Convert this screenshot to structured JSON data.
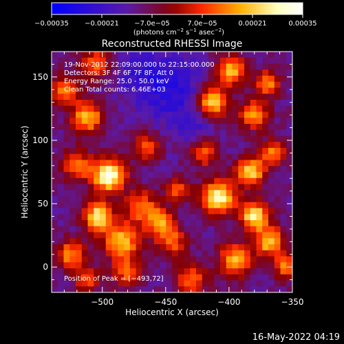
{
  "chart_data": {
    "type": "heatmap",
    "title": "Reconstructed RHESSI Image",
    "xlabel": "Heliocentric X (arcsec)",
    "ylabel": "Heliocentric Y (arcsec)",
    "xlim": [
      -540,
      -350
    ],
    "ylim": [
      -20,
      170
    ],
    "xticks": [
      -500,
      -450,
      -400,
      -350
    ],
    "yticks": [
      0,
      50,
      100,
      150
    ],
    "xtick_labels": [
      "−500",
      "−450",
      "−400",
      "−350"
    ],
    "ytick_labels": [
      "0",
      "50",
      "100",
      "150"
    ],
    "colorbar": {
      "range": [
        -0.00035,
        0.00035
      ],
      "tick_labels": [
        "−0.00035",
        "−0.00021",
        "−7.0e−05",
        "7.0e−05",
        "0.00021",
        "0.00035"
      ],
      "unit_parts": [
        "(photons cm",
        "−2",
        " s",
        "−1",
        " asec",
        "−2",
        ")"
      ],
      "stops": [
        "#0000ff",
        "#5a1aa8",
        "#880000",
        "#ff2a00",
        "#ffb000",
        "#ffffc0",
        "#ffffff"
      ]
    },
    "annotations": {
      "time_range": "19-Nov-2012 22:09:00.000 to 22:15:00.000",
      "detectors": "Detectors: 3F 4F 6F 7F 8F, Att 0",
      "energy_range": "Energy Range: 25.0 - 50.0 keV",
      "clean_info": "Clean     Total counts: 6.46E+03",
      "peak": "Position of Peak = [−493,72]"
    },
    "sources": [
      {
        "x": -495,
        "y": 72,
        "peak": 1.0,
        "size": 9
      },
      {
        "x": -503,
        "y": 40,
        "peak": 0.85,
        "size": 8
      },
      {
        "x": -512,
        "y": 118,
        "peak": 0.7,
        "size": 9
      },
      {
        "x": -485,
        "y": 20,
        "peak": 0.75,
        "size": 10
      },
      {
        "x": -520,
        "y": 80,
        "peak": 0.6,
        "size": 8
      },
      {
        "x": -530,
        "y": 140,
        "peak": 0.55,
        "size": 8
      },
      {
        "x": -525,
        "y": 10,
        "peak": 0.6,
        "size": 8
      },
      {
        "x": -470,
        "y": 48,
        "peak": 0.55,
        "size": 9
      },
      {
        "x": -455,
        "y": 35,
        "peak": 0.6,
        "size": 8
      },
      {
        "x": -445,
        "y": 20,
        "peak": 0.5,
        "size": 8
      },
      {
        "x": -440,
        "y": 60,
        "peak": 0.45,
        "size": 7
      },
      {
        "x": -465,
        "y": 95,
        "peak": 0.45,
        "size": 8
      },
      {
        "x": -420,
        "y": 90,
        "peak": 0.5,
        "size": 8
      },
      {
        "x": -408,
        "y": 55,
        "peak": 0.95,
        "size": 9
      },
      {
        "x": -413,
        "y": 130,
        "peak": 0.8,
        "size": 9
      },
      {
        "x": -398,
        "y": 155,
        "peak": 0.7,
        "size": 8
      },
      {
        "x": -380,
        "y": 120,
        "peak": 0.65,
        "size": 8
      },
      {
        "x": -370,
        "y": 145,
        "peak": 0.6,
        "size": 7
      },
      {
        "x": -383,
        "y": 75,
        "peak": 0.8,
        "size": 8
      },
      {
        "x": -365,
        "y": 90,
        "peak": 0.6,
        "size": 7
      },
      {
        "x": -380,
        "y": 40,
        "peak": 0.85,
        "size": 8
      },
      {
        "x": -368,
        "y": 20,
        "peak": 0.75,
        "size": 8
      },
      {
        "x": -395,
        "y": 5,
        "peak": 0.7,
        "size": 9
      },
      {
        "x": -355,
        "y": 0,
        "peak": 0.55,
        "size": 7
      },
      {
        "x": -430,
        "y": -10,
        "peak": 0.5,
        "size": 9
      },
      {
        "x": -480,
        "y": -5,
        "peak": 0.5,
        "size": 8
      },
      {
        "x": -512,
        "y": -10,
        "peak": 0.45,
        "size": 7
      },
      {
        "x": -505,
        "y": 160,
        "peak": 0.55,
        "size": 8
      }
    ],
    "negative_regions": [
      {
        "x": -445,
        "y": 140,
        "depth": 0.8,
        "size": 18
      },
      {
        "x": -470,
        "y": 155,
        "depth": 0.5,
        "size": 14
      },
      {
        "x": -425,
        "y": 110,
        "depth": 0.4,
        "size": 12
      }
    ]
  },
  "footer": {
    "timestamp": "16-May-2022 04:19"
  }
}
